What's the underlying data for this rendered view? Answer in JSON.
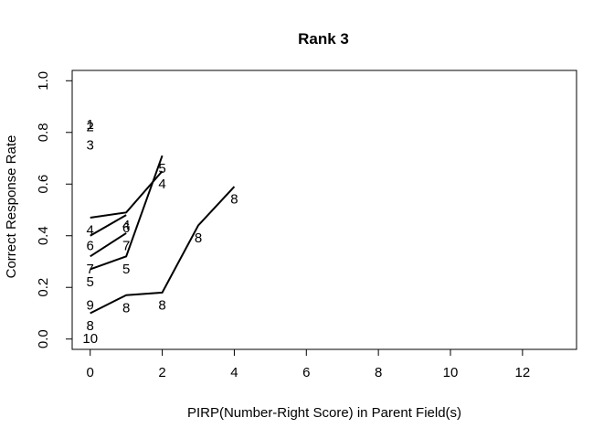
{
  "chart_data": {
    "type": "line",
    "title": "Rank 3",
    "xlabel": "PIRP(Number-Right Score) in Parent Field(s)",
    "ylabel": "Correct Response Rate",
    "xlim": [
      -0.5,
      13.5
    ],
    "ylim": [
      -0.04,
      1.04
    ],
    "x_ticks": [
      0,
      2,
      4,
      6,
      8,
      10,
      12
    ],
    "y_ticks": [
      0.0,
      0.2,
      0.4,
      0.6,
      0.8,
      1.0
    ],
    "x_tick_labels": [
      "0",
      "2",
      "4",
      "6",
      "8",
      "10",
      "12"
    ],
    "y_tick_labels": [
      "0.0",
      "0.2",
      "0.4",
      "0.6",
      "0.8",
      "1.0"
    ],
    "grid": false,
    "lines": [
      {
        "x": [
          0,
          1,
          2
        ],
        "y": [
          0.47,
          0.49,
          0.65
        ]
      },
      {
        "x": [
          0,
          1
        ],
        "y": [
          0.4,
          0.48
        ]
      },
      {
        "x": [
          0,
          1
        ],
        "y": [
          0.32,
          0.41
        ]
      },
      {
        "x": [
          0,
          1,
          2
        ],
        "y": [
          0.27,
          0.32,
          0.71
        ]
      },
      {
        "x": [
          0,
          1,
          2,
          3,
          4
        ],
        "y": [
          0.1,
          0.17,
          0.18,
          0.44,
          0.59
        ]
      }
    ],
    "point_labels": [
      {
        "x": 0,
        "y": 0.83,
        "label": "1"
      },
      {
        "x": 0,
        "y": 0.82,
        "label": "2"
      },
      {
        "x": 0,
        "y": 0.75,
        "label": "3"
      },
      {
        "x": 0,
        "y": 0.42,
        "label": "4"
      },
      {
        "x": 0,
        "y": 0.36,
        "label": "6"
      },
      {
        "x": 0,
        "y": 0.27,
        "label": "7"
      },
      {
        "x": 0,
        "y": 0.22,
        "label": "5"
      },
      {
        "x": 0,
        "y": 0.13,
        "label": "9"
      },
      {
        "x": 0,
        "y": 0.05,
        "label": "8"
      },
      {
        "x": 0,
        "y": -0.0,
        "label": "10"
      },
      {
        "x": 1,
        "y": 0.44,
        "label": "4"
      },
      {
        "x": 1,
        "y": 0.43,
        "label": "6"
      },
      {
        "x": 1,
        "y": 0.36,
        "label": "7"
      },
      {
        "x": 1,
        "y": 0.27,
        "label": "5"
      },
      {
        "x": 1,
        "y": 0.12,
        "label": "8"
      },
      {
        "x": 2,
        "y": 0.66,
        "label": "5"
      },
      {
        "x": 2,
        "y": 0.6,
        "label": "4"
      },
      {
        "x": 2,
        "y": 0.13,
        "label": "8"
      },
      {
        "x": 3,
        "y": 0.39,
        "label": "8"
      },
      {
        "x": 4,
        "y": 0.54,
        "label": "8"
      }
    ]
  }
}
